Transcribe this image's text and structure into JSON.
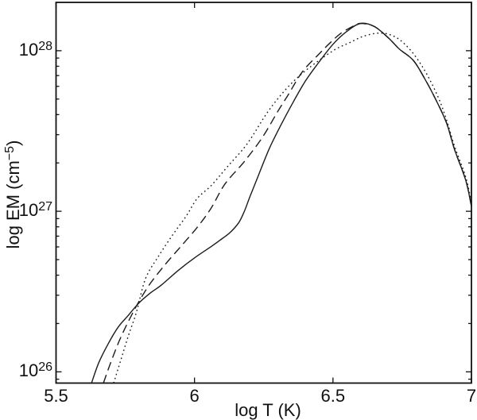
{
  "chart_data": {
    "type": "line",
    "title": "",
    "xlabel": "log T (K)",
    "ylabel": {
      "pre": "log EM (cm",
      "sup": "−5",
      "post": ")"
    },
    "x_scale": "linear",
    "y_scale": "log",
    "xlim": [
      5.5,
      7.0
    ],
    "ylim_log": [
      25.93,
      28.301
    ],
    "grid": false,
    "legend": "none",
    "axis_color": "#111111",
    "line_color": "#1b1b1b",
    "x_ticks": [
      {
        "value": 5.5,
        "label": "5.5"
      },
      {
        "value": 6.0,
        "label": "6"
      },
      {
        "value": 6.5,
        "label": "6.5"
      },
      {
        "value": 7.0,
        "label": "7"
      }
    ],
    "y_ticks": [
      {
        "log": 26,
        "base": "10",
        "exp": "26"
      },
      {
        "log": 27,
        "base": "10",
        "exp": "27"
      },
      {
        "log": 28,
        "base": "10",
        "exp": "28"
      }
    ],
    "series": [
      {
        "name": "dotted-em-locus",
        "style": "dotted",
        "points": [
          [
            5.708,
            25.93
          ],
          [
            5.735,
            26.08
          ],
          [
            5.762,
            26.23
          ],
          [
            5.79,
            26.37
          ],
          [
            5.823,
            26.58
          ],
          [
            5.87,
            26.72
          ],
          [
            5.92,
            26.85
          ],
          [
            5.97,
            26.97
          ],
          [
            6.01,
            27.08
          ],
          [
            6.06,
            27.16
          ],
          [
            6.12,
            27.28
          ],
          [
            6.19,
            27.42
          ],
          [
            6.265,
            27.62
          ],
          [
            6.33,
            27.76
          ],
          [
            6.39,
            27.86
          ],
          [
            6.45,
            27.94
          ],
          [
            6.51,
            28.01
          ],
          [
            6.56,
            28.05
          ],
          [
            6.61,
            28.09
          ],
          [
            6.67,
            28.11
          ],
          [
            6.72,
            28.09
          ],
          [
            6.76,
            28.04
          ],
          [
            6.8,
            27.96
          ],
          [
            6.84,
            27.85
          ],
          [
            6.88,
            27.71
          ],
          [
            6.91,
            27.57
          ],
          [
            6.94,
            27.4
          ],
          [
            6.98,
            27.21
          ],
          [
            7.0,
            27.05
          ]
        ]
      },
      {
        "name": "dashed-em-locus",
        "style": "dashed",
        "points": [
          [
            5.671,
            25.93
          ],
          [
            5.7,
            26.07
          ],
          [
            5.73,
            26.2
          ],
          [
            5.763,
            26.32
          ],
          [
            5.8,
            26.44
          ],
          [
            5.84,
            26.55
          ],
          [
            5.89,
            26.66
          ],
          [
            5.95,
            26.78
          ],
          [
            6.01,
            26.9
          ],
          [
            6.06,
            27.02
          ],
          [
            6.11,
            27.17
          ],
          [
            6.18,
            27.31
          ],
          [
            6.245,
            27.46
          ],
          [
            6.3,
            27.62
          ],
          [
            6.34,
            27.73
          ],
          [
            6.39,
            27.87
          ],
          [
            6.45,
            27.98
          ],
          [
            6.49,
            28.05
          ],
          [
            6.53,
            28.11
          ],
          [
            6.57,
            28.15
          ],
          [
            6.6,
            28.17
          ],
          [
            6.65,
            28.15
          ],
          [
            6.7,
            28.08
          ],
          [
            6.74,
            28.01
          ],
          [
            6.79,
            27.94
          ],
          [
            6.83,
            27.83
          ],
          [
            6.87,
            27.7
          ],
          [
            6.91,
            27.55
          ],
          [
            6.94,
            27.38
          ],
          [
            6.98,
            27.19
          ],
          [
            7.0,
            27.03
          ]
        ]
      },
      {
        "name": "solid-em-locus",
        "style": "solid",
        "points": [
          [
            5.628,
            25.93
          ],
          [
            5.655,
            26.06
          ],
          [
            5.69,
            26.18
          ],
          [
            5.725,
            26.28
          ],
          [
            5.76,
            26.35
          ],
          [
            5.8,
            26.43
          ],
          [
            5.84,
            26.49
          ],
          [
            5.88,
            26.54
          ],
          [
            5.94,
            26.63
          ],
          [
            6.0,
            26.71
          ],
          [
            6.06,
            26.78
          ],
          [
            6.1,
            26.83
          ],
          [
            6.13,
            26.87
          ],
          [
            6.16,
            26.93
          ],
          [
            6.18,
            27.0
          ],
          [
            6.2,
            27.09
          ],
          [
            6.23,
            27.22
          ],
          [
            6.27,
            27.39
          ],
          [
            6.31,
            27.53
          ],
          [
            6.35,
            27.66
          ],
          [
            6.4,
            27.81
          ],
          [
            6.45,
            27.93
          ],
          [
            6.5,
            28.04
          ],
          [
            6.55,
            28.12
          ],
          [
            6.6,
            28.17
          ],
          [
            6.65,
            28.15
          ],
          [
            6.7,
            28.08
          ],
          [
            6.74,
            28.01
          ],
          [
            6.79,
            27.94
          ],
          [
            6.83,
            27.83
          ],
          [
            6.87,
            27.7
          ],
          [
            6.91,
            27.55
          ],
          [
            6.94,
            27.38
          ],
          [
            6.98,
            27.19
          ],
          [
            7.0,
            27.03
          ]
        ]
      }
    ]
  }
}
